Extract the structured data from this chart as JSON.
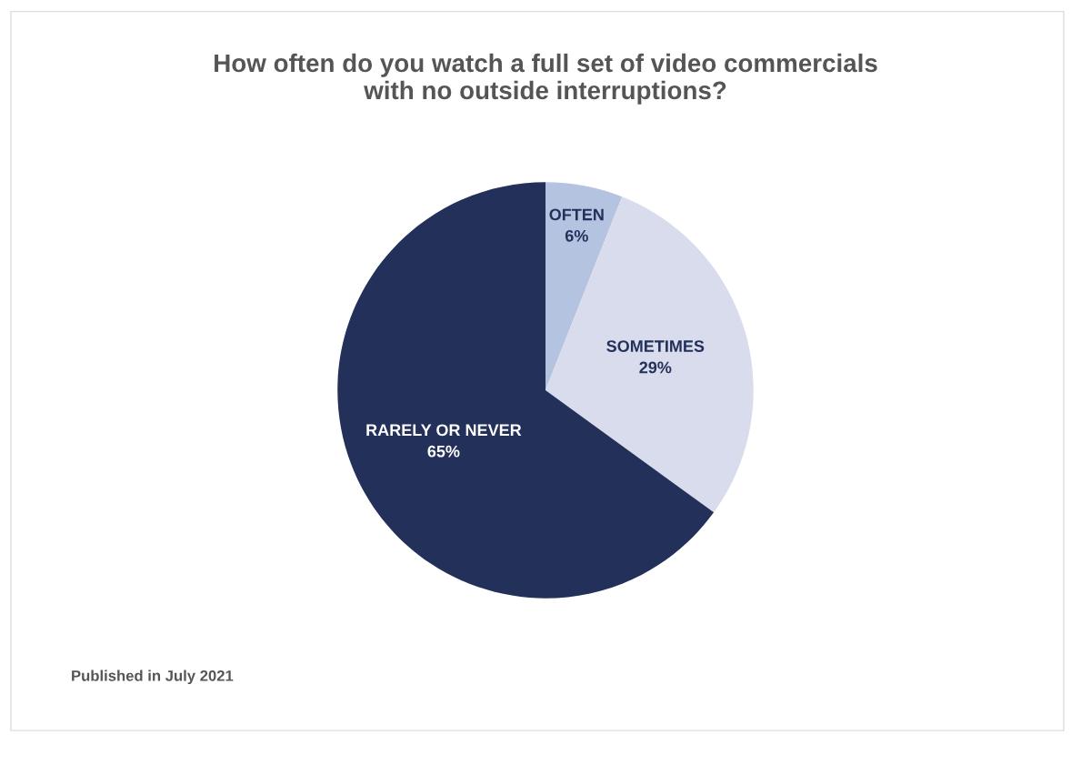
{
  "chart_data": {
    "type": "pie",
    "title": "How often do you watch a full set of video commercials\nwith no outside interruptions?",
    "categories": [
      "OFTEN",
      "SOMETIMES",
      "RARELY OR NEVER"
    ],
    "values": [
      6,
      29,
      65
    ],
    "colors": [
      "#b4c4e0",
      "#d9dcec",
      "#22305a"
    ],
    "value_labels": [
      "6%",
      "29%",
      "65%"
    ],
    "annotations": [
      "Published in July 2021"
    ]
  }
}
